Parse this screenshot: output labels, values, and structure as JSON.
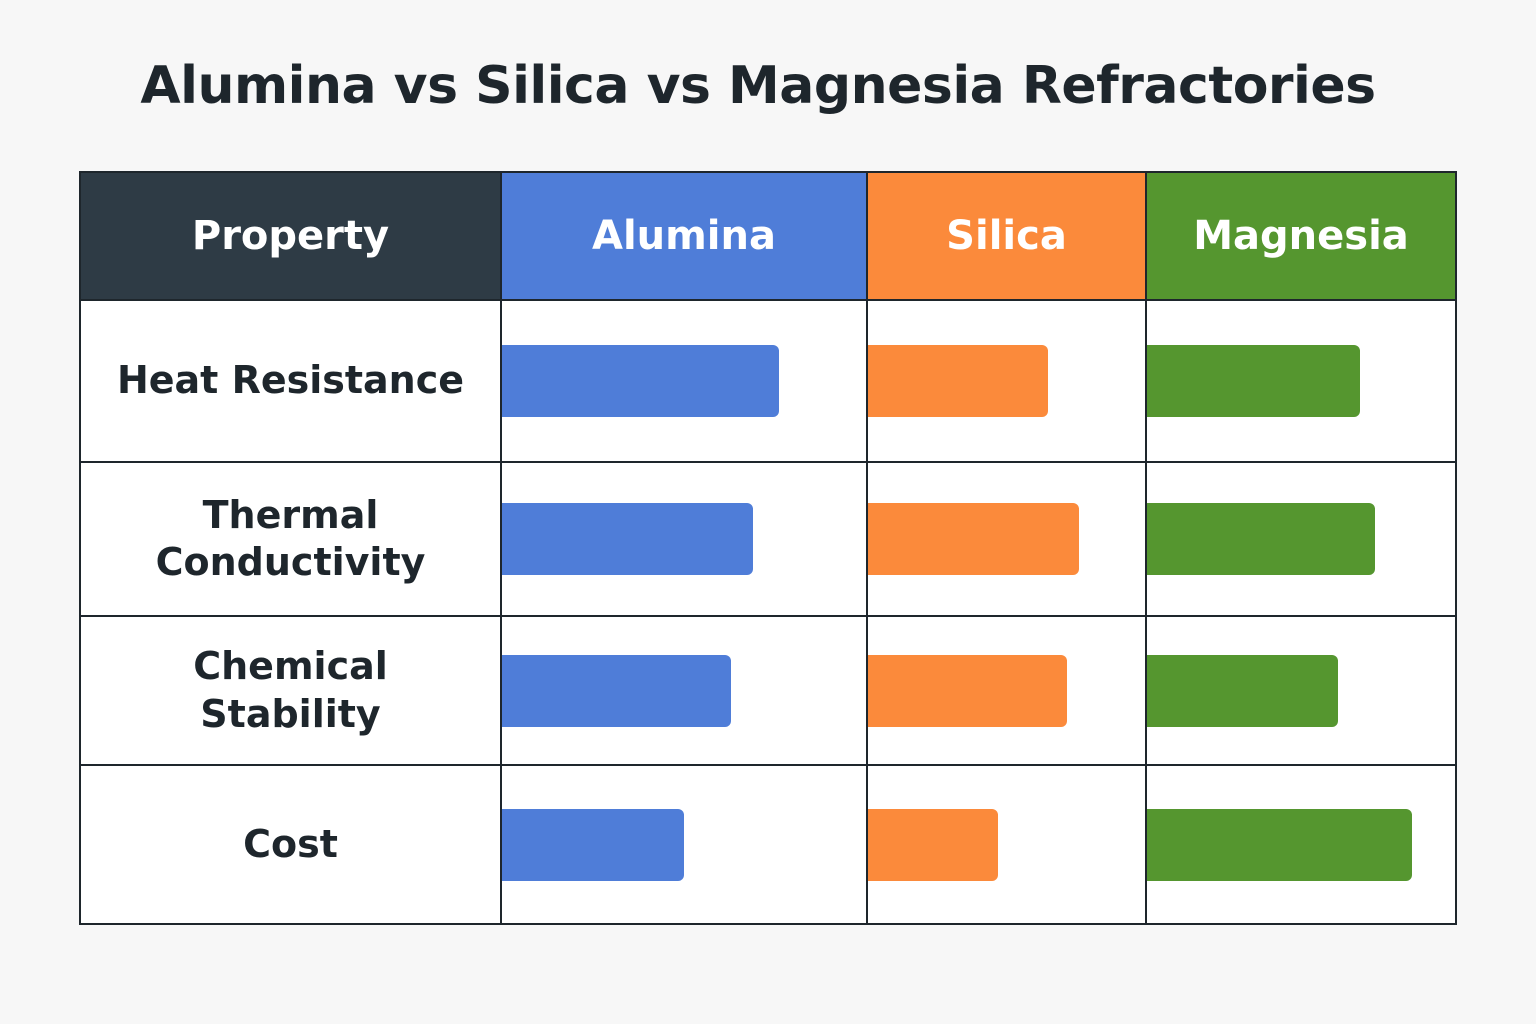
{
  "chart_data": {
    "type": "table",
    "title": "Alumina vs Silica vs Magnesia Refractories",
    "header": {
      "property": "Property",
      "series": [
        "Alumina",
        "Silica",
        "Magnesia"
      ]
    },
    "colors": {
      "property_header": "#2e3b45",
      "Alumina": "#4f7dd8",
      "Silica": "#fb8a3b",
      "Magnesia": "#55962f"
    },
    "rows": [
      {
        "property": "Heat Resistance",
        "values": {
          "Alumina": 0.76,
          "Silica": 0.65,
          "Magnesia": 0.69
        }
      },
      {
        "property": "Thermal Conductivity",
        "values": {
          "Alumina": 0.69,
          "Silica": 0.76,
          "Magnesia": 0.74
        }
      },
      {
        "property": "Chemical Stability",
        "values": {
          "Alumina": 0.63,
          "Silica": 0.72,
          "Magnesia": 0.62
        }
      },
      {
        "property": "Cost",
        "values": {
          "Alumina": 0.5,
          "Silica": 0.47,
          "Magnesia": 0.86
        }
      }
    ]
  }
}
